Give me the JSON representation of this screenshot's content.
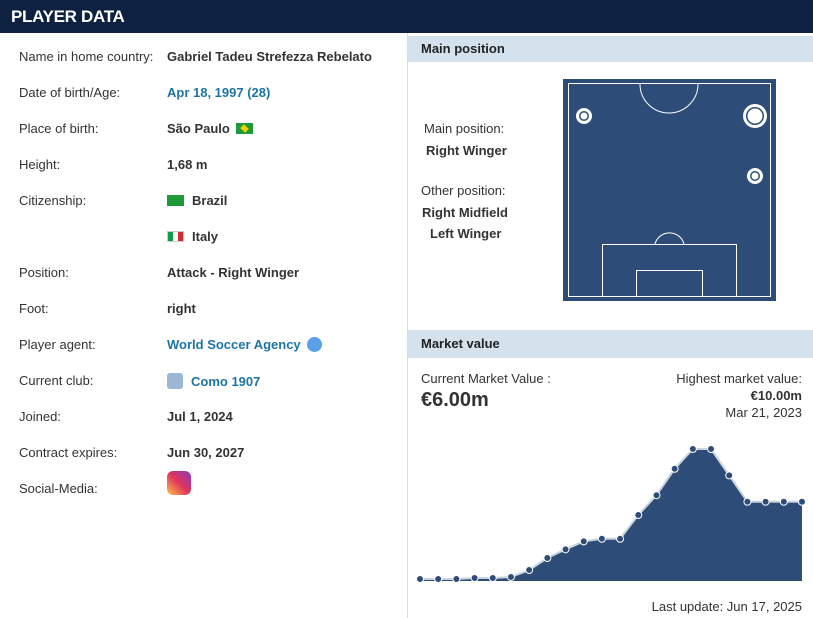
{
  "header": {
    "title": "PLAYER DATA"
  },
  "info": {
    "rows": [
      {
        "label": "Name in home country:",
        "value": "Gabriel Tadeu Strefezza Rebelato"
      },
      {
        "label": "Date of birth/Age:",
        "value": "Apr 18, 1997 (28)"
      },
      {
        "label": "Place of birth:",
        "value": "São Paulo"
      },
      {
        "label": "Height:",
        "value": "1,68 m"
      },
      {
        "label": "Citizenship:",
        "values": [
          "Brazil",
          "Italy"
        ]
      },
      {
        "label": "Position:",
        "value": "Attack - Right Winger"
      },
      {
        "label": "Foot:",
        "value": "right"
      },
      {
        "label": "Player agent:",
        "value": "World Soccer Agency"
      },
      {
        "label": "Current club:",
        "value": "Como 1907"
      },
      {
        "label": "Joined:",
        "value": "Jul 1, 2024"
      },
      {
        "label": "Contract expires:",
        "value": "Jun 30, 2027"
      },
      {
        "label": "Social-Media:"
      }
    ]
  },
  "main_position": {
    "title": "Main position",
    "main_label": "Main position:",
    "main": "Right Winger",
    "other_label": "Other position:",
    "other": [
      "Right Midfield",
      "Left Winger"
    ]
  },
  "market_value": {
    "title": "Market value",
    "current_label": "Current Market Value :",
    "current": "€6.00m",
    "highest_label": "Highest market value:",
    "highest": "€10.00m",
    "highest_date": "Mar 21, 2023",
    "last_update": "Last update: Jun 17, 2025",
    "history": [
      0.15,
      0.15,
      0.15,
      0.23,
      0.23,
      0.3,
      0.83,
      1.74,
      2.4,
      3.0,
      3.2,
      3.2,
      5.0,
      6.5,
      8.5,
      10,
      10,
      8.0,
      6.0,
      6.0,
      6.0,
      6.0
    ]
  }
}
